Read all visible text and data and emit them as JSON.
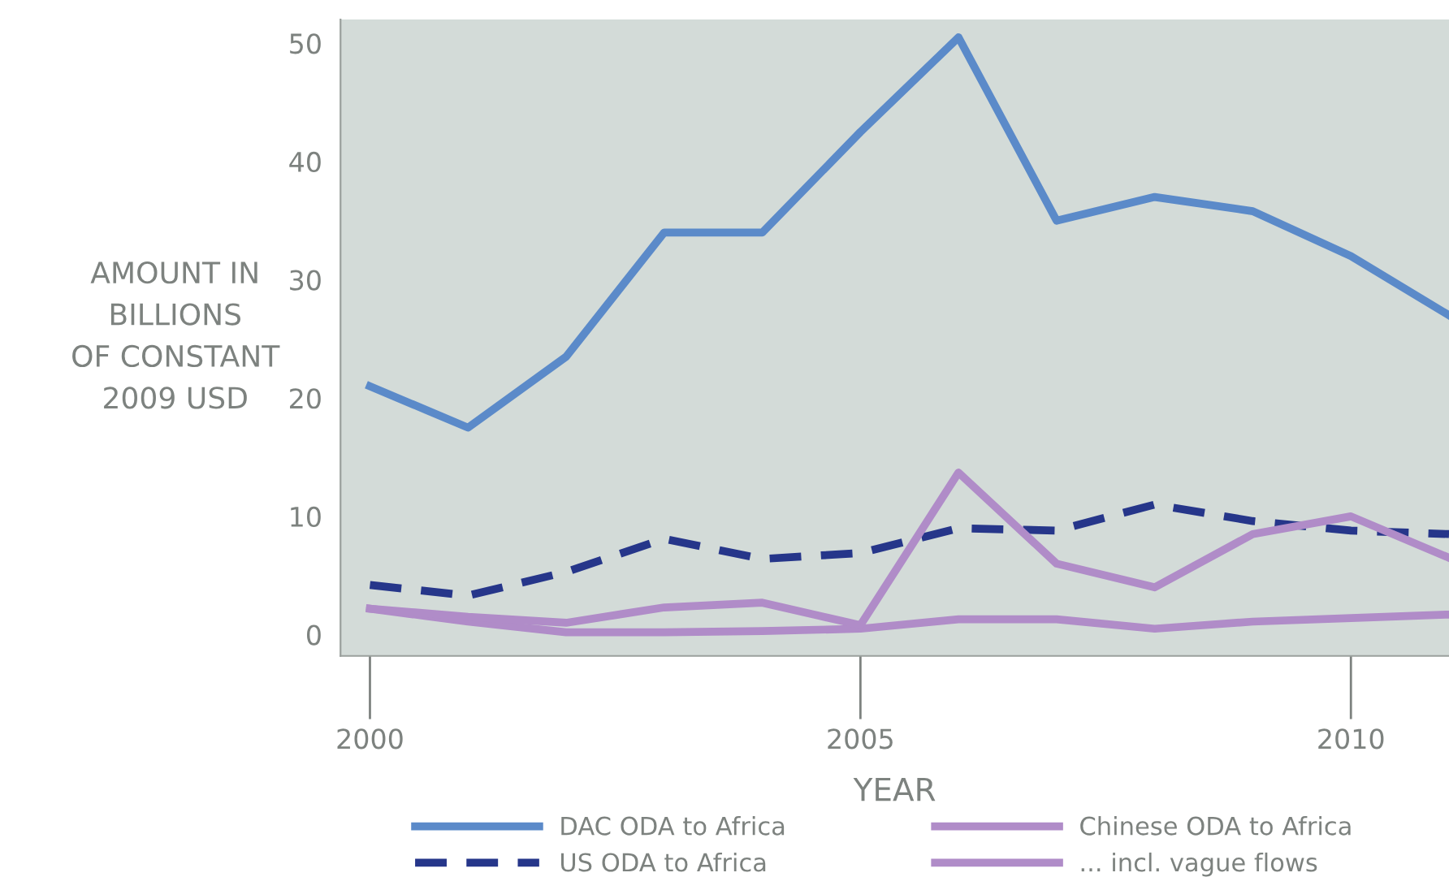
{
  "chart_data": {
    "type": "line",
    "xlabel": "YEAR",
    "ylabel": "AMOUNT IN\nBILLIONS\nOF CONSTANT\n2009 USD",
    "x": [
      2000,
      2001,
      2002,
      2003,
      2004,
      2005,
      2006,
      2007,
      2008,
      2009,
      2010,
      2011
    ],
    "series": [
      {
        "name": "DAC ODA to Africa",
        "color": "#5b8ac9",
        "line_style": "solid",
        "values": [
          21,
          17.5,
          23.5,
          34,
          34,
          42.5,
          50.5,
          35,
          37,
          35.8,
          32,
          27
        ]
      },
      {
        "name": "US ODA to Africa",
        "color": "#26368a",
        "line_style": "dashed",
        "values": [
          4.2,
          3.3,
          5.3,
          8.1,
          6.4,
          6.9,
          9,
          8.8,
          11,
          9.6,
          8.8,
          8.5
        ]
      },
      {
        "name": "Chinese ODA to Africa",
        "color": "#b08cc8",
        "line_style": "solid",
        "values": [
          2.2,
          1.1,
          0.2,
          0.2,
          0.3,
          0.5,
          1.3,
          1.3,
          0.5,
          1.1,
          1.4,
          1.7
        ]
      },
      {
        "name": "... incl. vague flows",
        "color": "#b08cc8",
        "line_style": "solid",
        "values": [
          2.2,
          1.5,
          1.0,
          2.3,
          2.7,
          0.8,
          13.7,
          6,
          4,
          8.5,
          10,
          6.5
        ]
      }
    ],
    "xlim": [
      1999.7,
      2011
    ],
    "ylim": [
      -1.8,
      52
    ],
    "xticks": [
      2000,
      2005,
      2010
    ],
    "yticks": [
      0,
      10,
      20,
      30,
      40,
      50
    ],
    "grid": false,
    "legend": "bottom",
    "marker": "none"
  }
}
